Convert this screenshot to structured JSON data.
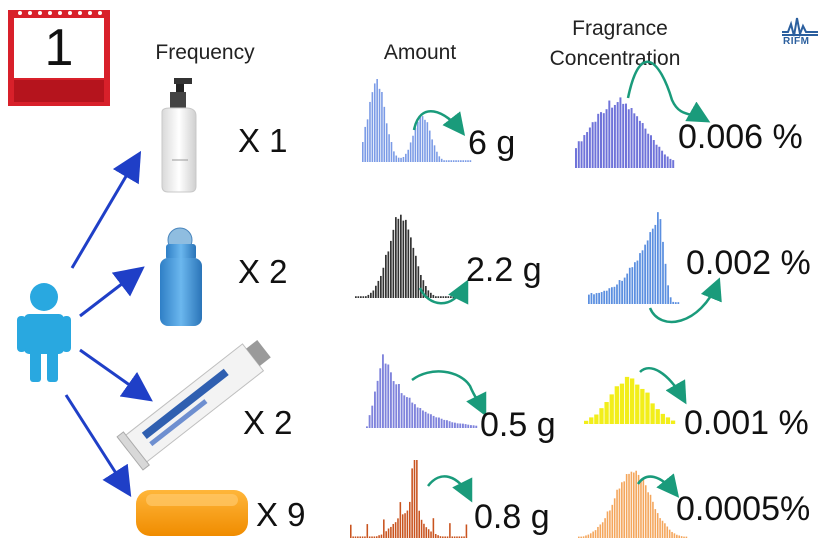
{
  "calendar": {
    "day": "1"
  },
  "logo": {
    "text": "RIFM"
  },
  "headers": {
    "frequency": "Frequency",
    "amount": "Amount",
    "concentration_line1": "Fragrance",
    "concentration_line2": "Concentration"
  },
  "rows": [
    {
      "product": "lotion-bottle",
      "frequency": "X 1",
      "amount": "6 g",
      "concentration": "0.006 %",
      "amount_color": "#7b9be6",
      "conc_color": "#6f73d9"
    },
    {
      "product": "roll-on-deodorant",
      "frequency": "X 2",
      "amount": "2.2 g",
      "concentration": "0.002 %",
      "amount_color": "#333333",
      "conc_color": "#5b8fe0"
    },
    {
      "product": "toothpaste-tube",
      "frequency": "X 2",
      "amount": "0.5 g",
      "concentration": "0.001 %",
      "amount_color": "#7f83dc",
      "conc_color": "#f2ee1a"
    },
    {
      "product": "soap-bar",
      "frequency": "X 9",
      "amount": "0.8 g",
      "concentration": "0.0005%",
      "amount_color": "#c9531e",
      "conc_color": "#f4a65c"
    }
  ],
  "colors": {
    "arrow_blue": "#1f3fc7",
    "curve_green": "#1a9b7b",
    "person": "#29a8e0",
    "calendar_red": "#d8202a"
  }
}
